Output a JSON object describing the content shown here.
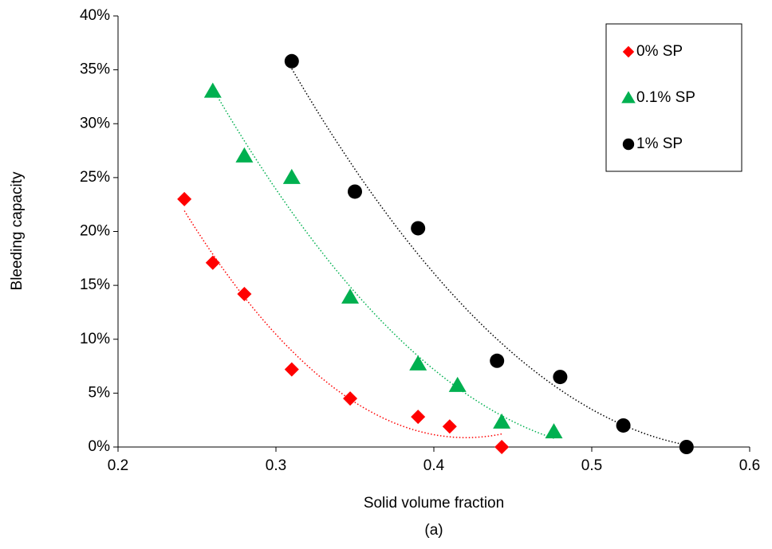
{
  "chart_data": {
    "type": "scatter",
    "xlabel": "Solid volume fraction",
    "ylabel": "Bleeding capacity",
    "caption": "(a)",
    "xlim": [
      0.2,
      0.6
    ],
    "xticks": [
      0.2,
      0.3,
      0.4,
      0.5,
      0.6
    ],
    "ylim": [
      0,
      40
    ],
    "yticks": [
      {
        "value": 0,
        "label": "0%"
      },
      {
        "value": 5,
        "label": "5%"
      },
      {
        "value": 10,
        "label": "10%"
      },
      {
        "value": 15,
        "label": "15%"
      },
      {
        "value": 20,
        "label": "20%"
      },
      {
        "value": 25,
        "label": "25%"
      },
      {
        "value": 30,
        "label": "30%"
      },
      {
        "value": 35,
        "label": "35%"
      },
      {
        "value": 40,
        "label": "40%"
      }
    ],
    "legend": "upper right",
    "trendline": true,
    "series": [
      {
        "name": "0% SP",
        "color": "#ff0000",
        "marker": "diamond",
        "x": [
          0.242,
          0.26,
          0.28,
          0.31,
          0.347,
          0.39,
          0.41,
          0.443
        ],
        "values": [
          23,
          17.1,
          14.2,
          7.2,
          4.5,
          2.8,
          1.9,
          0
        ]
      },
      {
        "name": "0.1% SP",
        "color": "#00b050",
        "marker": "triangle",
        "x": [
          0.26,
          0.28,
          0.31,
          0.347,
          0.39,
          0.415,
          0.443,
          0.476
        ],
        "values": [
          33,
          27,
          25,
          13.9,
          7.7,
          5.7,
          2.3,
          1.4
        ]
      },
      {
        "name": "1% SP",
        "color": "#000000",
        "marker": "circle",
        "x": [
          0.31,
          0.35,
          0.39,
          0.44,
          0.48,
          0.52,
          0.56
        ],
        "values": [
          35.8,
          23.7,
          20.3,
          8,
          6.5,
          2,
          0
        ]
      }
    ]
  }
}
